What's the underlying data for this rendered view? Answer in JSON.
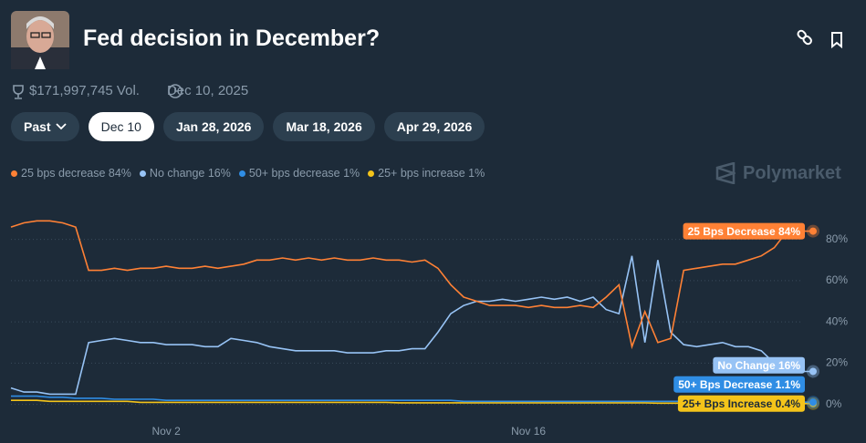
{
  "header": {
    "title": "Fed decision in December?",
    "volume": "$171,997,745 Vol.",
    "end_date": "Dec 10, 2025",
    "tabs": [
      "Past",
      "Dec 10",
      "Jan 28, 2026",
      "Mar 18, 2026",
      "Apr 29, 2026"
    ],
    "watermark": "Polymarket"
  },
  "chart_data": {
    "type": "line",
    "grid": true,
    "categories": [
      null,
      null,
      null,
      null,
      null,
      null,
      null,
      null,
      null,
      null,
      null,
      null,
      "Nov 2",
      null,
      null,
      null,
      null,
      null,
      null,
      null,
      null,
      null,
      null,
      null,
      null,
      null,
      null,
      null,
      null,
      null,
      null,
      null,
      null,
      null,
      null,
      null,
      null,
      null,
      null,
      null,
      "Nov 16",
      null,
      null,
      null,
      null,
      null,
      null,
      null,
      null,
      null,
      null,
      null,
      null,
      null,
      null,
      null,
      null,
      null,
      null,
      null,
      null,
      null,
      null
    ],
    "ylim": [
      -5,
      90
    ],
    "yticks": [
      {
        "value": 0,
        "label": "0%"
      },
      {
        "value": 20,
        "label": "20%"
      },
      {
        "value": 40,
        "label": "40%"
      },
      {
        "value": 60,
        "label": "60%"
      },
      {
        "value": 80,
        "label": "80%"
      }
    ],
    "series": [
      {
        "name": "25 bps decrease 84%",
        "tag": "25 Bps Decrease 84%",
        "color": "#ff8135",
        "values": [
          86,
          88,
          89,
          89,
          88,
          86,
          65,
          65,
          66,
          65,
          66,
          66,
          67,
          66,
          66,
          67,
          66,
          67,
          68,
          70,
          70,
          71,
          70,
          71,
          70,
          71,
          70,
          70,
          71,
          70,
          70,
          69,
          70,
          66,
          58,
          52,
          50,
          48,
          48,
          48,
          47,
          48,
          47,
          47,
          48,
          47,
          52,
          58,
          28,
          45,
          30,
          32,
          65,
          66,
          67,
          68,
          68,
          70,
          72,
          76,
          84,
          84,
          84
        ]
      },
      {
        "name": "No change 16%",
        "tag": "No Change 16%",
        "color": "#97c3f5",
        "values": [
          8,
          6,
          6,
          5,
          5,
          5,
          30,
          31,
          32,
          31,
          30,
          30,
          29,
          29,
          29,
          28,
          28,
          32,
          31,
          30,
          28,
          27,
          26,
          26,
          26,
          26,
          25,
          25,
          25,
          26,
          26,
          27,
          27,
          35,
          44,
          48,
          50,
          50,
          51,
          50,
          51,
          52,
          51,
          52,
          50,
          52,
          46,
          44,
          72,
          30,
          70,
          35,
          29,
          28,
          29,
          30,
          28,
          28,
          26,
          20,
          16,
          16,
          16
        ]
      },
      {
        "name": "50+ bps decrease 1%",
        "tag": "50+ Bps Decrease 1.1%",
        "color": "#2f8de4",
        "values": [
          4,
          4,
          4,
          3.5,
          3.5,
          3,
          3,
          3,
          2.5,
          2.5,
          2.5,
          2.5,
          2,
          2,
          2,
          2,
          2,
          2,
          2,
          2,
          2,
          2,
          2,
          2,
          2,
          2,
          2,
          2,
          2,
          2,
          2,
          2,
          2,
          2,
          2,
          1.5,
          1.5,
          1.5,
          1.5,
          1.5,
          1.5,
          1.5,
          1.5,
          1.5,
          1.5,
          1.5,
          1.5,
          1.5,
          1.5,
          1.5,
          1.5,
          1.5,
          1.5,
          1.5,
          1.5,
          1.5,
          1.2,
          1.1,
          1.1,
          1.1,
          1.1,
          1.1,
          1.1
        ]
      },
      {
        "name": "25+ bps increase 1%",
        "tag": "25+ Bps Increase 0.4%",
        "color": "#f4c41a",
        "values": [
          2,
          2,
          2,
          1.5,
          1.5,
          1.5,
          1.5,
          1.5,
          1.5,
          1.5,
          1,
          1,
          1,
          1,
          1,
          1,
          1,
          1,
          1,
          1,
          1,
          1,
          1,
          1,
          1,
          1,
          1,
          1,
          1,
          1,
          0.8,
          0.8,
          0.8,
          0.8,
          0.8,
          0.8,
          0.8,
          0.8,
          0.8,
          0.8,
          0.8,
          0.8,
          0.8,
          0.8,
          0.8,
          0.8,
          0.8,
          0.8,
          0.8,
          0.8,
          0.6,
          0.6,
          0.6,
          0.6,
          0.6,
          0.6,
          0.6,
          0.6,
          0.4,
          0.4,
          0.4,
          0.4,
          0.4
        ]
      }
    ]
  }
}
